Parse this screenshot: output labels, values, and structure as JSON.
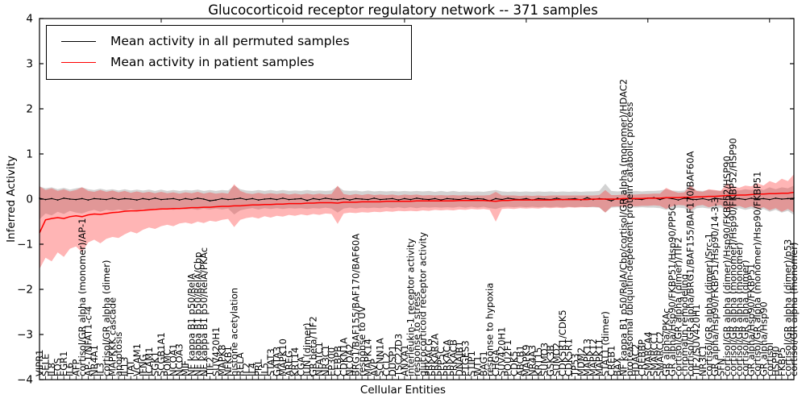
{
  "figure": {
    "title": "Glucocorticoid receptor regulatory network -- 371 samples",
    "xlabel": "Cellular Entities",
    "ylabel": "Inferred Activity",
    "legend": [
      {
        "label": "Mean activity in all permuted samples",
        "color": "#000000"
      },
      {
        "label": "Mean activity in patient samples",
        "color": "#ff0000"
      }
    ]
  },
  "chart_data": {
    "type": "line",
    "title": "Glucocorticoid receptor regulatory network -- 371 samples",
    "xlabel": "Cellular Entities",
    "ylabel": "Inferred Activity",
    "ylim": [
      -4,
      4
    ],
    "yticks": [
      4,
      3,
      2,
      1,
      0,
      -1,
      -2,
      -3,
      -4
    ],
    "ytick_labels": [
      "4",
      "3",
      "2",
      "1",
      "0",
      "−1",
      "−2",
      "−3",
      "−4"
    ],
    "grid": false,
    "legend_position": "upper left",
    "colors": {
      "permuted_line": "#000000",
      "patient_line": "#ff0000",
      "permuted_band": "rgba(130,130,130,0.35)",
      "patient_band": "rgba(255,30,30,0.33)"
    },
    "categories": [
      "VIPR1",
      "SELE",
      "IL8",
      "FOS",
      "EGR1",
      "IL6",
      "AFP",
      "cortisol/GR alpha (monomer)/AP-1",
      "AP-1/NFAT1-c-4",
      "NR4A1",
      "IL3",
      "cortisol/GR alpha (dimer)",
      "MAPKKK cascade",
      "apoptosis",
      "IL13",
      "TAT",
      "VCAM1",
      "IFNG",
      "ICAM1",
      "SGK1",
      "SCGB1A1",
      "POMC",
      "NCOA1",
      "NCOA3",
      "MIF",
      "NF kappa B1 p50/RelA",
      "NF kappa B1 p50/RelA/Cbp",
      "NF kappa B1 p50/RelA/PKAc",
      "TIF2",
      "SUV420H1",
      "MAPK8",
      "NFKB1",
      "histone acetylation",
      "RELA",
      "IL2",
      "IL4",
      "PRL",
      "IL5",
      "STAT3",
      "GATA3",
      "MAPK10",
      "AREG",
      "KRT14",
      "CGA",
      "JUN (dimer)",
      "GR beta/TIF2",
      "NFATC1",
      "NR3C1",
      "EP300",
      "CEBPB",
      "CDKN1A",
      "NCOA2",
      "BRG1/BAF155/BAF170/BAF60A",
      "response to UV",
      "MAPK14",
      "AVP",
      "SCNN1A",
      "CCL2",
      "DUSP1",
      "TSC22D3",
      "ANXA1",
      "interleukin-1 receptor activity",
      "response to stress",
      "glucocorticoid receptor activity",
      "PRKACG",
      "PRKAR2A",
      "PPP5C",
      "PRKACA",
      "PRKACB",
      "DNAJB1",
      "PTGES3",
      "STIP1",
      "WT1",
      "BAG1",
      "response to hypoxia",
      "CHGA",
      "SUV420H1",
      "POU2F1",
      "CDK5",
      "ABCB1",
      "MAPK9",
      "NR4A3",
      "KRT15",
      "SUMO3",
      "GSK3B",
      "SUMO2",
      "CDK5R1/CDK5",
      "CDK5R1",
      "TP53",
      "MDM2",
      "MAPK13",
      "MAPK12",
      "MAPK11",
      "STAT1 (dimer)",
      "CREB1",
      "BAX",
      "NF kappa B1 p50/RelA/Cbp/cortisol/GR alpha (monomer)/HDAC2",
      "proteasomal ubiquitin-dependent protein catabolic process",
      "HDAC2",
      "CREBBP",
      "SMARCA4",
      "SMARCC1",
      "SMARCC2",
      "GR alpha/PKAc",
      "GR alpha/Hsp90/FKBP51/Hsp90/PP5C",
      "cortisol/GR alpha (dimer)/TIF2",
      "chromatin remodeling",
      "cortisol/GR alpha/BRG1/BAF155/BAF170/BAF60A",
      "TIF2/SUV420H1",
      "NR3C1",
      "cortisol/GR alpha (dimer)/Src-1",
      "GR alpha/Hsp90/FKBP51/Hsp90/14-3-3",
      "SFN",
      "cortisol/GR alpha (dimer)/Hsp90/FKBP52/HSP90",
      "cortisol/GR alpha (monomer)/Hsp90/FKBP52/HSP90",
      "cortisol/GR alpha (monomer)",
      "cortisol/GR alpha (dimer)",
      "GR alpha/Hsp90/FKBP51",
      "cortisol/GR alpha (monomer)/Hsp90/FKBP51",
      "GR alpha/Hsp90",
      "cortisol",
      "HSP90",
      "FKBP5",
      "cortisol/GR alpha (dimer)/p53",
      "cortisol/GR alpha (monomer)"
    ],
    "series": [
      {
        "name": "Mean activity in all permuted samples",
        "color": "#000000",
        "values": [
          0.02,
          -0.01,
          0.01,
          -0.02,
          0.02,
          0.0,
          -0.01,
          0.01,
          -0.02,
          0.01,
          0.0,
          -0.01,
          0.02,
          -0.01,
          0.01,
          0.0,
          -0.02,
          0.01,
          -0.01,
          0.02,
          -0.01,
          0.0,
          0.01,
          -0.02,
          0.01,
          -0.01,
          0.02,
          0.0,
          -0.04,
          -0.02,
          0.01,
          -0.01,
          0.0,
          0.02,
          -0.01,
          0.01,
          -0.02,
          0.0,
          0.01,
          -0.01,
          0.02,
          -0.01,
          0.0,
          0.01,
          -0.03,
          0.01,
          -0.01,
          0.02,
          0.0,
          -0.01,
          0.01,
          -0.02,
          0.01,
          0.0,
          -0.01,
          0.02,
          -0.01,
          0.0,
          0.01,
          -0.02,
          0.01,
          -0.01,
          0.02,
          0.0,
          -0.01,
          0.01,
          -0.02,
          0.01,
          0.0,
          -0.01,
          0.02,
          -0.01,
          0.01,
          0.0,
          -0.04,
          0.01,
          -0.01,
          0.02,
          0.0,
          -0.01,
          0.01,
          -0.02,
          0.01,
          0.0,
          -0.01,
          0.02,
          -0.01,
          0.0,
          0.01,
          -0.02,
          0.03,
          -0.01,
          0.01,
          0.0,
          -0.04,
          0.02,
          -0.02,
          0.01,
          0.0,
          -0.01,
          0.02,
          0.03,
          -0.01,
          0.03,
          0.01,
          -0.02,
          0.02,
          0.0,
          -0.01,
          0.01,
          -0.02,
          0.02,
          0.0,
          -0.01,
          0.02,
          0.01,
          -0.01,
          0.02,
          0.0,
          0.01,
          -0.01,
          0.02,
          0.0,
          0.01,
          0.02
        ]
      },
      {
        "name": "Mean activity in patient samples",
        "color": "#ff0000",
        "values": [
          -0.75,
          -0.46,
          -0.43,
          -0.41,
          -0.43,
          -0.39,
          -0.37,
          -0.39,
          -0.35,
          -0.33,
          -0.34,
          -0.32,
          -0.3,
          -0.29,
          -0.27,
          -0.26,
          -0.26,
          -0.25,
          -0.24,
          -0.23,
          -0.22,
          -0.22,
          -0.21,
          -0.21,
          -0.2,
          -0.19,
          -0.19,
          -0.18,
          -0.18,
          -0.17,
          -0.16,
          -0.16,
          -0.15,
          -0.15,
          -0.14,
          -0.13,
          -0.13,
          -0.12,
          -0.12,
          -0.11,
          -0.11,
          -0.1,
          -0.1,
          -0.1,
          -0.09,
          -0.09,
          -0.08,
          -0.08,
          -0.08,
          -0.09,
          -0.07,
          -0.07,
          -0.07,
          -0.06,
          -0.06,
          -0.06,
          -0.06,
          -0.05,
          -0.05,
          -0.05,
          -0.05,
          -0.05,
          -0.04,
          -0.04,
          -0.04,
          -0.04,
          -0.04,
          -0.04,
          -0.04,
          -0.03,
          -0.03,
          -0.03,
          -0.03,
          -0.03,
          -0.04,
          -0.05,
          -0.03,
          -0.03,
          -0.02,
          -0.02,
          -0.02,
          -0.02,
          -0.02,
          -0.02,
          -0.02,
          -0.01,
          -0.01,
          -0.01,
          -0.01,
          -0.01,
          -0.01,
          0.0,
          0.0,
          0.0,
          0.0,
          0.0,
          0.01,
          0.01,
          0.01,
          0.01,
          0.02,
          0.02,
          0.02,
          0.03,
          0.03,
          0.03,
          0.04,
          0.04,
          0.05,
          0.05,
          0.06,
          0.06,
          0.07,
          0.08,
          0.08,
          0.09,
          0.09,
          0.1,
          0.11,
          0.11,
          0.12,
          0.12,
          0.13,
          0.13,
          0.15
        ]
      }
    ],
    "bands": [
      {
        "name": "permuted mean ± std",
        "color": "rgba(130,130,130,0.35)",
        "upper": [
          0.28,
          0.24,
          0.26,
          0.22,
          0.25,
          0.21,
          0.24,
          0.26,
          0.22,
          0.2,
          0.23,
          0.2,
          0.22,
          0.19,
          0.22,
          0.19,
          0.21,
          0.19,
          0.21,
          0.18,
          0.21,
          0.18,
          0.2,
          0.18,
          0.2,
          0.19,
          0.21,
          0.18,
          0.2,
          0.18,
          0.2,
          0.19,
          0.3,
          0.22,
          0.19,
          0.18,
          0.2,
          0.18,
          0.2,
          0.18,
          0.2,
          0.18,
          0.19,
          0.18,
          0.2,
          0.18,
          0.19,
          0.18,
          0.19,
          0.28,
          0.19,
          0.18,
          0.19,
          0.17,
          0.19,
          0.17,
          0.18,
          0.17,
          0.18,
          0.17,
          0.18,
          0.17,
          0.18,
          0.17,
          0.18,
          0.16,
          0.18,
          0.16,
          0.18,
          0.16,
          0.17,
          0.16,
          0.17,
          0.16,
          0.18,
          0.2,
          0.17,
          0.16,
          0.17,
          0.16,
          0.17,
          0.16,
          0.17,
          0.16,
          0.17,
          0.16,
          0.17,
          0.16,
          0.17,
          0.16,
          0.17,
          0.17,
          0.18,
          0.34,
          0.18,
          0.17,
          0.18,
          0.17,
          0.18,
          0.17,
          0.18,
          0.18,
          0.19,
          0.22,
          0.19,
          0.18,
          0.19,
          0.3,
          0.19,
          0.18,
          0.2,
          0.19,
          0.18,
          0.22,
          0.2,
          0.19,
          0.22,
          0.2,
          0.24,
          0.2,
          0.26,
          0.22,
          0.26,
          0.24,
          0.3
        ],
        "lower": [
          -0.45,
          -0.32,
          -0.36,
          -0.28,
          -0.33,
          -0.26,
          -0.3,
          -0.32,
          -0.27,
          -0.24,
          -0.28,
          -0.24,
          -0.26,
          -0.23,
          -0.26,
          -0.22,
          -0.25,
          -0.22,
          -0.25,
          -0.21,
          -0.24,
          -0.21,
          -0.24,
          -0.21,
          -0.23,
          -0.22,
          -0.24,
          -0.21,
          -0.23,
          -0.21,
          -0.23,
          -0.21,
          -0.34,
          -0.25,
          -0.22,
          -0.2,
          -0.23,
          -0.2,
          -0.22,
          -0.2,
          -0.22,
          -0.2,
          -0.21,
          -0.2,
          -0.22,
          -0.2,
          -0.21,
          -0.19,
          -0.21,
          -0.3,
          -0.21,
          -0.19,
          -0.21,
          -0.19,
          -0.2,
          -0.19,
          -0.2,
          -0.18,
          -0.2,
          -0.18,
          -0.2,
          -0.18,
          -0.2,
          -0.18,
          -0.19,
          -0.18,
          -0.19,
          -0.18,
          -0.19,
          -0.17,
          -0.19,
          -0.17,
          -0.19,
          -0.17,
          -0.2,
          -0.22,
          -0.18,
          -0.17,
          -0.18,
          -0.17,
          -0.18,
          -0.17,
          -0.18,
          -0.17,
          -0.18,
          -0.17,
          -0.18,
          -0.17,
          -0.18,
          -0.17,
          -0.18,
          -0.18,
          -0.19,
          -0.3,
          -0.19,
          -0.18,
          -0.19,
          -0.18,
          -0.19,
          -0.18,
          -0.19,
          -0.19,
          -0.2,
          -0.24,
          -0.2,
          -0.19,
          -0.2,
          -0.3,
          -0.2,
          -0.19,
          -0.21,
          -0.2,
          -0.19,
          -0.24,
          -0.21,
          -0.2,
          -0.24,
          -0.21,
          -0.26,
          -0.22,
          -0.28,
          -0.24,
          -0.3,
          -0.26,
          -0.35
        ]
      },
      {
        "name": "patient mean ± std",
        "color": "rgba(255,30,30,0.33)",
        "upper": [
          0.28,
          0.2,
          0.24,
          0.18,
          0.22,
          0.17,
          0.2,
          0.26,
          0.18,
          0.16,
          0.2,
          0.16,
          0.19,
          0.15,
          0.18,
          0.14,
          0.17,
          0.14,
          0.16,
          0.13,
          0.16,
          0.13,
          0.15,
          0.12,
          0.15,
          0.13,
          0.16,
          0.12,
          0.15,
          0.12,
          0.14,
          0.12,
          0.33,
          0.18,
          0.13,
          0.11,
          0.14,
          0.11,
          0.13,
          0.11,
          0.13,
          0.1,
          0.12,
          0.1,
          0.12,
          0.1,
          0.12,
          0.1,
          0.11,
          0.3,
          0.11,
          0.09,
          0.11,
          0.09,
          0.11,
          0.09,
          0.1,
          0.09,
          0.1,
          0.08,
          0.1,
          0.09,
          0.1,
          0.08,
          0.09,
          0.08,
          0.09,
          0.08,
          0.09,
          0.08,
          0.09,
          0.08,
          0.08,
          0.08,
          0.09,
          0.16,
          0.08,
          0.08,
          0.08,
          0.07,
          0.08,
          0.07,
          0.08,
          0.07,
          0.08,
          0.08,
          0.08,
          0.08,
          0.08,
          0.08,
          0.08,
          0.08,
          0.09,
          0.2,
          0.09,
          0.09,
          0.1,
          0.1,
          0.1,
          0.11,
          0.11,
          0.12,
          0.12,
          0.25,
          0.18,
          0.14,
          0.15,
          0.3,
          0.18,
          0.16,
          0.22,
          0.2,
          0.18,
          0.35,
          0.28,
          0.25,
          0.3,
          0.28,
          0.35,
          0.3,
          0.4,
          0.35,
          0.45,
          0.4,
          0.55
        ],
        "lower": [
          -1.55,
          -1.3,
          -1.38,
          -1.18,
          -1.28,
          -1.1,
          -1.05,
          -1.18,
          -0.96,
          -0.9,
          -0.98,
          -0.88,
          -0.84,
          -0.86,
          -0.78,
          -0.72,
          -0.76,
          -0.68,
          -0.63,
          -0.66,
          -0.6,
          -0.57,
          -0.6,
          -0.54,
          -0.52,
          -0.55,
          -0.5,
          -0.53,
          -0.48,
          -0.5,
          -0.46,
          -0.44,
          -0.62,
          -0.46,
          -0.42,
          -0.4,
          -0.43,
          -0.38,
          -0.41,
          -0.37,
          -0.39,
          -0.35,
          -0.37,
          -0.34,
          -0.36,
          -0.33,
          -0.35,
          -0.32,
          -0.33,
          -0.55,
          -0.32,
          -0.3,
          -0.31,
          -0.29,
          -0.3,
          -0.28,
          -0.29,
          -0.27,
          -0.28,
          -0.26,
          -0.27,
          -0.26,
          -0.27,
          -0.25,
          -0.26,
          -0.24,
          -0.25,
          -0.24,
          -0.25,
          -0.23,
          -0.24,
          -0.22,
          -0.23,
          -0.22,
          -0.24,
          -0.5,
          -0.22,
          -0.21,
          -0.22,
          -0.2,
          -0.21,
          -0.2,
          -0.21,
          -0.19,
          -0.2,
          -0.19,
          -0.2,
          -0.18,
          -0.19,
          -0.18,
          -0.18,
          -0.17,
          -0.18,
          -0.3,
          -0.17,
          -0.16,
          -0.17,
          -0.15,
          -0.16,
          -0.15,
          -0.15,
          -0.14,
          -0.15,
          -0.22,
          -0.16,
          -0.13,
          -0.14,
          -0.25,
          -0.15,
          -0.13,
          -0.18,
          -0.15,
          -0.13,
          -0.25,
          -0.18,
          -0.15,
          -0.2,
          -0.16,
          -0.22,
          -0.18,
          -0.25,
          -0.2,
          -0.28,
          -0.22,
          -0.3
        ]
      }
    ]
  }
}
